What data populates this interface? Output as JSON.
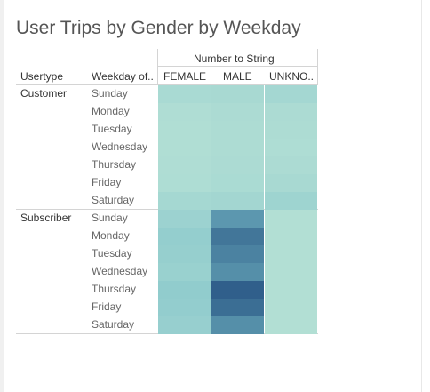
{
  "sheet": {
    "title": "User Trips by Gender by Weekday"
  },
  "chart_data": {
    "type": "heatmap",
    "title": "User Trips by Gender by Weekday",
    "column_group_label": "Number to String",
    "row_header_labels": [
      "Usertype",
      "Weekday of.."
    ],
    "columns": [
      "FEMALE",
      "MALE",
      "UNKNO.."
    ],
    "groups": [
      {
        "name": "Customer",
        "rows": [
          "Sunday",
          "Monday",
          "Tuesday",
          "Wednesday",
          "Thursday",
          "Friday",
          "Saturday"
        ],
        "values": [
          [
            0.13,
            0.14,
            0.17
          ],
          [
            0.08,
            0.11,
            0.11
          ],
          [
            0.07,
            0.1,
            0.1
          ],
          [
            0.07,
            0.1,
            0.09
          ],
          [
            0.08,
            0.11,
            0.11
          ],
          [
            0.09,
            0.12,
            0.14
          ],
          [
            0.16,
            0.18,
            0.22
          ]
        ]
      },
      {
        "name": "Subscriber",
        "rows": [
          "Sunday",
          "Monday",
          "Tuesday",
          "Wednesday",
          "Thursday",
          "Friday",
          "Saturday"
        ],
        "values": [
          [
            0.24,
            0.7,
            0.06
          ],
          [
            0.3,
            0.86,
            0.06
          ],
          [
            0.29,
            0.8,
            0.06
          ],
          [
            0.26,
            0.74,
            0.06
          ],
          [
            0.33,
            0.97,
            0.06
          ],
          [
            0.31,
            0.9,
            0.06
          ],
          [
            0.28,
            0.74,
            0.06
          ]
        ]
      }
    ],
    "color_scale": [
      "#b9e3d6",
      "#2b5987"
    ]
  }
}
